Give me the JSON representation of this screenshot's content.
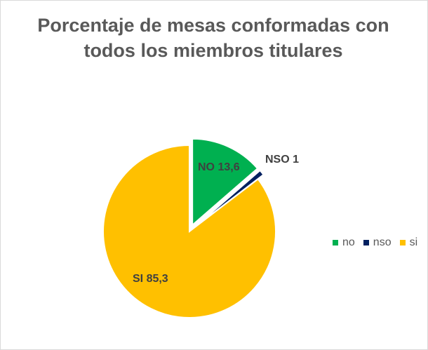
{
  "chart_data": {
    "type": "pie",
    "title_lines": [
      "Porcentaje de mesas conformadas con",
      "todos los miembros titulares"
    ],
    "slices": [
      {
        "name": "no",
        "value": 13.6,
        "label": "NO 13,6",
        "color": "#00b050",
        "exploded": true
      },
      {
        "name": "nso",
        "value": 1,
        "label": "NSO 1",
        "color": "#002060",
        "exploded": true
      },
      {
        "name": "si",
        "value": 85.3,
        "label": "SI 85,3",
        "color": "#ffc000",
        "exploded": false
      }
    ],
    "legend": {
      "position": "right",
      "entries": [
        "no",
        "nso",
        "si"
      ]
    }
  }
}
